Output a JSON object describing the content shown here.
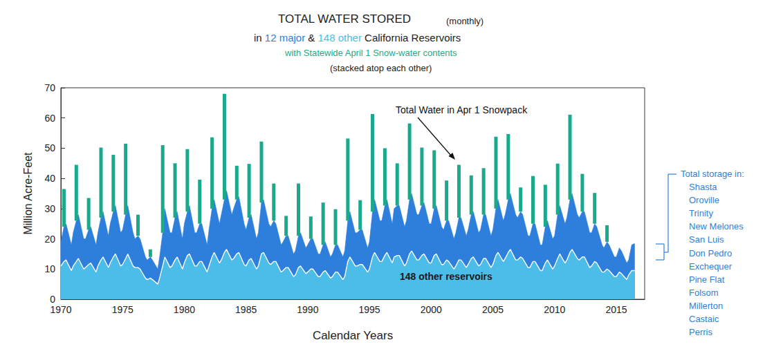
{
  "chart_data": {
    "type": "stacked_area",
    "title": "TOTAL WATER STORED",
    "title_note": "(monthly)",
    "subtitle": {
      "before": "in",
      "between": "&",
      "after": "California Reservoirs"
    },
    "snow_caption": "with Statewide April 1 Snow-water contents",
    "stack_note": "(stacked atop each other)",
    "xlabel": "Calendar Years",
    "ylabel": "Million Acre-Feet",
    "xlim": [
      1970,
      2017.3
    ],
    "xticks": [
      1970,
      1975,
      1980,
      1985,
      1990,
      1995,
      2000,
      2005,
      2010,
      2015
    ],
    "ylim": [
      0,
      70
    ],
    "yticks": [
      0,
      10,
      20,
      30,
      40,
      50,
      60,
      70
    ],
    "grid": false,
    "stacked": true,
    "x": [
      1970,
      1970.25,
      1970.42,
      1970.85,
      1971,
      1971.25,
      1971.42,
      1971.85,
      1972,
      1972.25,
      1972.42,
      1972.85,
      1973,
      1973.25,
      1973.42,
      1973.85,
      1974,
      1974.25,
      1974.42,
      1974.85,
      1975,
      1975.25,
      1975.42,
      1975.85,
      1976,
      1976.25,
      1976.42,
      1976.85,
      1977,
      1977.25,
      1977.42,
      1977.85,
      1978,
      1978.25,
      1978.42,
      1978.85,
      1979,
      1979.25,
      1979.42,
      1979.85,
      1980,
      1980.25,
      1980.42,
      1980.85,
      1981,
      1981.25,
      1981.42,
      1981.85,
      1982,
      1982.25,
      1982.42,
      1982.85,
      1983,
      1983.25,
      1983.42,
      1983.85,
      1984,
      1984.25,
      1984.42,
      1984.85,
      1985,
      1985.25,
      1985.42,
      1985.85,
      1986,
      1986.25,
      1986.42,
      1986.85,
      1987,
      1987.25,
      1987.42,
      1987.85,
      1988,
      1988.25,
      1988.42,
      1988.85,
      1989,
      1989.25,
      1989.42,
      1989.85,
      1990,
      1990.25,
      1990.42,
      1990.85,
      1991,
      1991.25,
      1991.42,
      1991.85,
      1992,
      1992.25,
      1992.42,
      1992.85,
      1993,
      1993.25,
      1993.42,
      1993.85,
      1994,
      1994.25,
      1994.42,
      1994.85,
      1995,
      1995.25,
      1995.42,
      1995.85,
      1996,
      1996.25,
      1996.42,
      1996.85,
      1997,
      1997.25,
      1997.42,
      1997.85,
      1998,
      1998.25,
      1998.42,
      1998.85,
      1999,
      1999.25,
      1999.42,
      1999.85,
      2000,
      2000.25,
      2000.42,
      2000.85,
      2001,
      2001.25,
      2001.42,
      2001.85,
      2002,
      2002.25,
      2002.42,
      2002.85,
      2003,
      2003.25,
      2003.42,
      2003.85,
      2004,
      2004.25,
      2004.42,
      2004.85,
      2005,
      2005.25,
      2005.42,
      2005.85,
      2006,
      2006.25,
      2006.42,
      2006.85,
      2007,
      2007.25,
      2007.42,
      2007.85,
      2008,
      2008.25,
      2008.42,
      2008.85,
      2009,
      2009.25,
      2009.42,
      2009.85,
      2010,
      2010.25,
      2010.42,
      2010.85,
      2011,
      2011.25,
      2011.42,
      2011.85,
      2012,
      2012.25,
      2012.42,
      2012.85,
      2013,
      2013.25,
      2013.42,
      2013.85,
      2014,
      2014.25,
      2014.42,
      2014.85,
      2015,
      2015.25,
      2015.42,
      2015.85,
      2016,
      2016.25,
      2016.5
    ],
    "series": [
      {
        "name": "148 other",
        "label": "148 other reservoirs",
        "color": "#4cbde8",
        "values": [
          11,
          12.5,
          13,
          9.5,
          11,
          12.5,
          13.5,
          10,
          10.5,
          11.5,
          12,
          9,
          11,
          13,
          14,
          10.5,
          12,
          14,
          15,
          11,
          11.5,
          13.5,
          15,
          11,
          10.5,
          10.5,
          10,
          7,
          6.5,
          7,
          6.5,
          5,
          7,
          11,
          14,
          10.5,
          11,
          13,
          14,
          10,
          12,
          14.5,
          15,
          11,
          11,
          12.5,
          12.5,
          9,
          11,
          14,
          15.5,
          12,
          13,
          15.5,
          16.5,
          13,
          13.5,
          15,
          15.5,
          11.5,
          11,
          13,
          13.5,
          10,
          11,
          15,
          15.5,
          12,
          11.5,
          12.5,
          12.5,
          9,
          9.5,
          10.5,
          10.5,
          7.5,
          8,
          10.5,
          11,
          8.5,
          9,
          10,
          10,
          7.5,
          7.5,
          9,
          9.5,
          7,
          7.5,
          9,
          9,
          6.5,
          7.5,
          12.5,
          14,
          11,
          11,
          11.5,
          11.5,
          9,
          10,
          14,
          15.5,
          12.5,
          12.5,
          14.5,
          15.5,
          12,
          14,
          14.5,
          14.5,
          11,
          12,
          15,
          16,
          13,
          13,
          14.5,
          15,
          12,
          12,
          14.5,
          15,
          11.5,
          11.5,
          13,
          12.5,
          10,
          11,
          13,
          13,
          10.5,
          11.5,
          13.5,
          14,
          11,
          11.5,
          13.5,
          13.5,
          10.5,
          11.5,
          14.5,
          15.5,
          12.5,
          13.5,
          15.5,
          16.5,
          13,
          13,
          14,
          13.5,
          10.5,
          10.5,
          12.5,
          12.5,
          9.5,
          9.5,
          12,
          13,
          10,
          11,
          13.5,
          15,
          12,
          13,
          15.5,
          16.5,
          13.5,
          13,
          14,
          14,
          10.5,
          11,
          12.5,
          12,
          9,
          9,
          10,
          9.5,
          7.5,
          7.5,
          9,
          8.5,
          6.5,
          8,
          9.5,
          9.5
        ]
      },
      {
        "name": "12 major",
        "color": "#2e7fdc",
        "values": [
          8,
          11.5,
          12,
          8.5,
          11,
          13.5,
          14.5,
          10,
          9.5,
          11.5,
          12,
          9,
          11,
          14,
          15,
          10.5,
          13,
          15,
          16,
          11,
          11.5,
          14.5,
          16,
          11,
          9.5,
          10.5,
          10,
          7,
          6.5,
          7,
          6.5,
          5,
          7,
          11,
          16,
          11.5,
          11,
          14,
          15,
          10,
          13,
          14.5,
          16,
          11,
          11,
          12.5,
          12.5,
          9,
          12,
          16,
          17.5,
          13,
          15,
          17.5,
          19.5,
          15,
          16.5,
          18,
          18.5,
          13.5,
          12,
          14,
          14.5,
          10,
          11,
          17,
          17.5,
          13,
          12.5,
          13.5,
          12.5,
          9,
          9.5,
          10.5,
          10.5,
          7.5,
          8,
          10.5,
          11,
          8.5,
          9,
          10,
          10,
          7.5,
          7.5,
          9,
          9.5,
          7,
          7.5,
          9,
          9,
          7.5,
          8.5,
          13.5,
          15,
          11,
          11,
          11.5,
          11.5,
          8,
          9,
          15,
          17.5,
          13.5,
          13.5,
          16.5,
          17.5,
          13,
          16,
          16.5,
          16.5,
          13,
          14,
          18,
          19,
          15,
          15,
          16.5,
          17,
          13,
          13,
          15.5,
          16,
          12.5,
          11.5,
          13,
          13.5,
          10,
          11,
          14,
          14,
          10.5,
          11.5,
          14.5,
          15,
          11,
          11.5,
          14.5,
          14.5,
          10.5,
          11.5,
          15.5,
          17.5,
          13.5,
          14.5,
          17.5,
          18.5,
          15,
          14,
          15,
          14.5,
          10.5,
          10.5,
          12.5,
          12.5,
          8.5,
          8.5,
          12,
          13,
          10,
          10,
          14.5,
          16,
          13,
          14,
          17.5,
          18.5,
          14.5,
          14,
          15,
          15,
          11.5,
          11,
          12.5,
          12,
          9,
          8,
          9,
          8.5,
          6.5,
          6.5,
          8,
          7.5,
          5.5,
          5,
          8.5,
          9
        ]
      }
    ],
    "snowpack": {
      "name": "Total Water in Apr 1 Snowpack",
      "color": "#1aa98b",
      "x": [
        1970.25,
        1971.25,
        1972.25,
        1973.25,
        1974.25,
        1975.25,
        1976.25,
        1977.25,
        1978.25,
        1979.25,
        1980.25,
        1981.25,
        1982.25,
        1983.25,
        1984.25,
        1985.25,
        1986.25,
        1987.25,
        1988.25,
        1989.25,
        1990.25,
        1991.25,
        1992.25,
        1993.25,
        1994.25,
        1995.25,
        1996.25,
        1997.25,
        1998.25,
        1999.25,
        2000.25,
        2001.25,
        2002.25,
        2003.25,
        2004.25,
        2005.25,
        2006.25,
        2007.25,
        2008.25,
        2009.25,
        2010.25,
        2011.25,
        2012.25,
        2013.25,
        2014.25
      ],
      "values": [
        12.5,
        18.5,
        10.5,
        23.2,
        18.8,
        23.5,
        7,
        2.5,
        29,
        18,
        20.7,
        14.6,
        23.6,
        35,
        11.2,
        17.8,
        20.2,
        12.3,
        6.6,
        17.3,
        7.4,
        14,
        11.8,
        27.2,
        9.8,
        32.3,
        19,
        14,
        25.2,
        19.2,
        19.3,
        13.3,
        17.5,
        13,
        15.4,
        23.8,
        21.7,
        8,
        15.8,
        13.9,
        16.9,
        28.1,
        12.5,
        10.2,
        5.5
      ]
    },
    "reservoirs": {
      "title": "Total storage in:",
      "names": [
        "Shasta",
        "Oroville",
        "Trinity",
        "New Melones",
        "San Luis",
        "Don Pedro",
        "Exchequer",
        "Pine Flat",
        "Folsom",
        "Millerton",
        "Castaic",
        "Perris"
      ]
    }
  }
}
